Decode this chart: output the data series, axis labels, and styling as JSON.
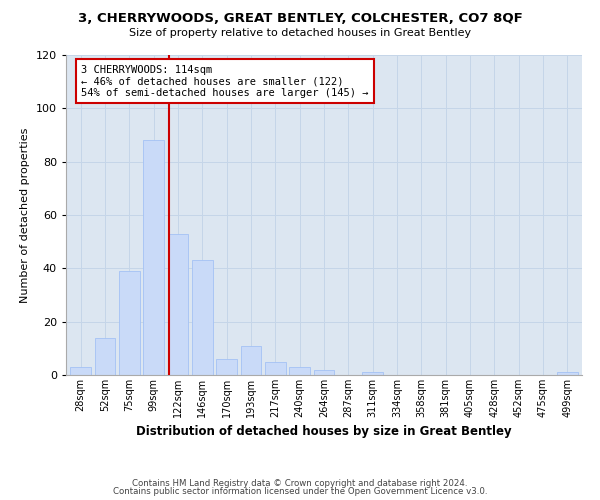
{
  "title1": "3, CHERRYWOODS, GREAT BENTLEY, COLCHESTER, CO7 8QF",
  "title2": "Size of property relative to detached houses in Great Bentley",
  "xlabel": "Distribution of detached houses by size in Great Bentley",
  "ylabel": "Number of detached properties",
  "footer1": "Contains HM Land Registry data © Crown copyright and database right 2024.",
  "footer2": "Contains public sector information licensed under the Open Government Licence v3.0.",
  "annotation_line1": "3 CHERRYWOODS: 114sqm",
  "annotation_line2": "← 46% of detached houses are smaller (122)",
  "annotation_line3": "54% of semi-detached houses are larger (145) →",
  "bar_labels": [
    "28sqm",
    "52sqm",
    "75sqm",
    "99sqm",
    "122sqm",
    "146sqm",
    "170sqm",
    "193sqm",
    "217sqm",
    "240sqm",
    "264sqm",
    "287sqm",
    "311sqm",
    "334sqm",
    "358sqm",
    "381sqm",
    "405sqm",
    "428sqm",
    "452sqm",
    "475sqm",
    "499sqm"
  ],
  "bar_values": [
    3,
    14,
    39,
    88,
    53,
    43,
    6,
    11,
    5,
    3,
    2,
    0,
    1,
    0,
    0,
    0,
    0,
    0,
    0,
    0,
    1
  ],
  "bar_color": "#c9daf8",
  "bar_edgecolor": "#a4c2f4",
  "vline_color": "#cc0000",
  "annotation_box_edgecolor": "#cc0000",
  "annotation_box_facecolor": "#ffffff",
  "grid_color": "#c5d5e8",
  "bg_color": "#dce6f1",
  "fig_color": "#ffffff",
  "ylim": [
    0,
    120
  ],
  "yticks": [
    0,
    20,
    40,
    60,
    80,
    100,
    120
  ]
}
